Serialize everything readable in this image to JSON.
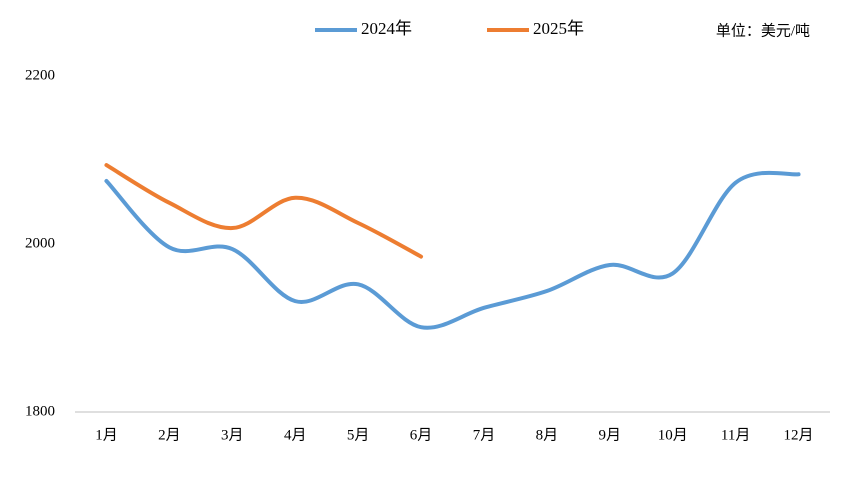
{
  "chart_data": {
    "type": "line",
    "unit_label": "单位：美元/吨",
    "categories": [
      "1月",
      "2月",
      "3月",
      "4月",
      "5月",
      "6月",
      "7月",
      "8月",
      "9月",
      "10月",
      "11月",
      "12月"
    ],
    "series": [
      {
        "name": "2024年",
        "color": "#5b9bd5",
        "values": [
          2075,
          1996,
          1994,
          1932,
          1952,
          1901,
          1924,
          1944,
          1975,
          1965,
          2073,
          2083
        ]
      },
      {
        "name": "2025年",
        "color": "#ed7d31",
        "values": [
          2094,
          2049,
          2019,
          2055,
          2025,
          1985,
          null,
          null,
          null,
          null,
          null,
          null
        ]
      }
    ],
    "ylim": [
      1800,
      2200
    ],
    "yticks": [
      1800,
      2000,
      2200
    ],
    "grid": false,
    "smooth": true,
    "legend": "top"
  }
}
